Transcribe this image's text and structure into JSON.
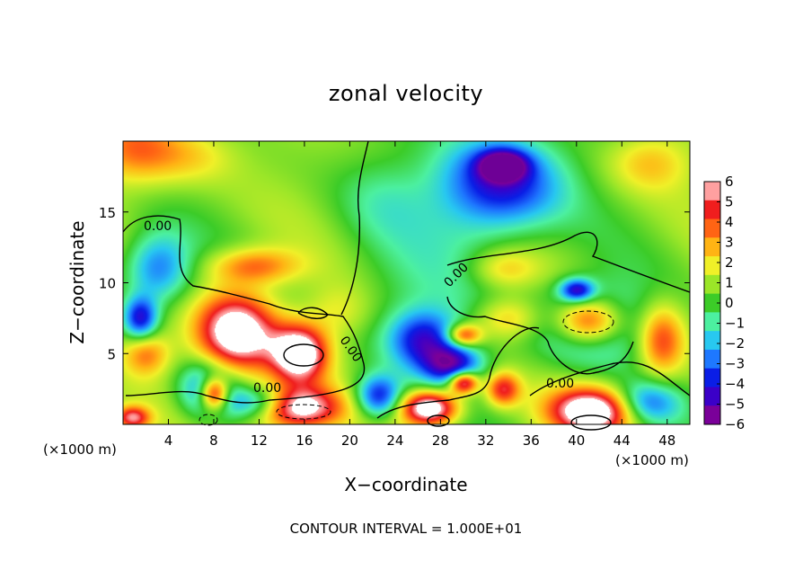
{
  "chart_data": {
    "type": "heatmap",
    "title": "zonal velocity",
    "xlabel": "X−coordinate",
    "ylabel": "Z−coordinate",
    "x_unit_left": "(×1000 m)",
    "x_unit_right": "(×1000 m)",
    "footer": "CONTOUR INTERVAL = 1.000E+01",
    "xlim": [
      0,
      50
    ],
    "ylim": [
      0,
      20
    ],
    "x_ticks": [
      4,
      8,
      12,
      16,
      20,
      24,
      28,
      32,
      36,
      40,
      44,
      48
    ],
    "x_tick_labels": [
      "4",
      "8",
      "12",
      "16",
      "20",
      "24",
      "28",
      "32",
      "36",
      "40",
      "44",
      "48"
    ],
    "y_ticks": [
      5,
      10,
      15
    ],
    "y_tick_labels": [
      "5",
      "10",
      "15"
    ],
    "colorbar": {
      "min": -6,
      "max": 6,
      "tick_values": [
        6,
        5,
        4,
        3,
        2,
        1,
        0,
        -1,
        -2,
        -3,
        -4,
        -5,
        -6
      ],
      "tick_labels": [
        "6",
        "5",
        "4",
        "3",
        "2",
        "1",
        "0",
        "−1",
        "−2",
        "−3",
        "−4",
        "−5",
        "−6"
      ],
      "colors": [
        "#7a0099",
        "#3b00c8",
        "#0a1ee6",
        "#1e78ff",
        "#28c8f0",
        "#4cf0a0",
        "#3ccc28",
        "#9be628",
        "#f0f028",
        "#ffb414",
        "#ff6414",
        "#f01e1e",
        "#ffa0a0"
      ]
    },
    "contour_labels": [
      "0.00",
      "0.00",
      "0.00",
      "0.00",
      "0.00"
    ],
    "blobs": [
      {
        "x": 1,
        "z": 19.5,
        "rx": 4,
        "rz": 2.5,
        "v": 3
      },
      {
        "x": 6,
        "z": 19,
        "rx": 4,
        "rz": 2,
        "v": 1.5
      },
      {
        "x": 3,
        "z": 11,
        "rx": 3,
        "rz": 2.5,
        "v": -4
      },
      {
        "x": 1.5,
        "z": 7.5,
        "rx": 1.5,
        "rz": 1.5,
        "v": -5
      },
      {
        "x": 11.5,
        "z": 11.2,
        "rx": 4,
        "rz": 1.3,
        "v": 3.5
      },
      {
        "x": 10,
        "z": 6.5,
        "rx": 3.5,
        "rz": 2.8,
        "v": 7.5
      },
      {
        "x": 15.5,
        "z": 5,
        "rx": 2.5,
        "rz": 2,
        "v": 7.5
      },
      {
        "x": 7.5,
        "z": 2.5,
        "rx": 2.5,
        "rz": 2,
        "v": -4.5
      },
      {
        "x": 8,
        "z": 2.2,
        "rx": 1.3,
        "rz": 1.2,
        "v": 7.5
      },
      {
        "x": 15,
        "z": 1.2,
        "rx": 4,
        "rz": 1.5,
        "v": 7.5
      },
      {
        "x": 12,
        "z": 1.5,
        "rx": 3,
        "rz": 1.2,
        "v": -4.5
      },
      {
        "x": 22.5,
        "z": 2,
        "rx": 2,
        "rz": 1.5,
        "v": -5
      },
      {
        "x": 27,
        "z": 1.2,
        "rx": 2.5,
        "rz": 1.2,
        "v": 7.5
      },
      {
        "x": 26.5,
        "z": 6,
        "rx": 3,
        "rz": 2,
        "v": -4.5
      },
      {
        "x": 29,
        "z": 4.2,
        "rx": 2.5,
        "rz": 1.4,
        "v": -5
      },
      {
        "x": 30,
        "z": 6.3,
        "rx": 1.5,
        "rz": 0.8,
        "v": 5
      },
      {
        "x": 30,
        "z": 3,
        "rx": 1.3,
        "rz": 0.8,
        "v": 7
      },
      {
        "x": 33,
        "z": 17,
        "rx": 5.5,
        "rz": 3.5,
        "v": -5.5
      },
      {
        "x": 33.5,
        "z": 18.3,
        "rx": 2,
        "rz": 1,
        "v": -6
      },
      {
        "x": 23,
        "z": 16,
        "rx": 4,
        "rz": 3,
        "v": -1
      },
      {
        "x": 33.5,
        "z": 11,
        "rx": 3,
        "rz": 1.4,
        "v": 2
      },
      {
        "x": 34,
        "z": 7.5,
        "rx": 3,
        "rz": 1.5,
        "v": 2.5
      },
      {
        "x": 33.5,
        "z": 2.5,
        "rx": 1.5,
        "rz": 1.2,
        "v": 4.5
      },
      {
        "x": 41,
        "z": 7.2,
        "rx": 4.5,
        "rz": 2.6,
        "v": -5
      },
      {
        "x": 41,
        "z": 7.3,
        "rx": 3,
        "rz": 1.7,
        "v": 7.5
      },
      {
        "x": 40,
        "z": 9.5,
        "rx": 1.5,
        "rz": 0.8,
        "v": -5
      },
      {
        "x": 47.5,
        "z": 6,
        "rx": 2,
        "rz": 2.5,
        "v": 4
      },
      {
        "x": 41.5,
        "z": 1,
        "rx": 3.8,
        "rz": 1.6,
        "v": 7.5
      },
      {
        "x": 46,
        "z": 1.5,
        "rx": 3,
        "rz": 1.5,
        "v": -4
      },
      {
        "x": 0.8,
        "z": 0.5,
        "rx": 1.5,
        "rz": 0.8,
        "v": 5
      },
      {
        "x": 46.5,
        "z": 18.5,
        "rx": 3.5,
        "rz": 2,
        "v": 2
      },
      {
        "x": 2,
        "z": 5,
        "rx": 2,
        "rz": 1.5,
        "v": 3
      },
      {
        "x": 19,
        "z": 8,
        "rx": 3,
        "rz": 2,
        "v": 1.5
      },
      {
        "x": 44,
        "z": 13,
        "rx": 5,
        "rz": 2,
        "v": 0
      }
    ]
  }
}
